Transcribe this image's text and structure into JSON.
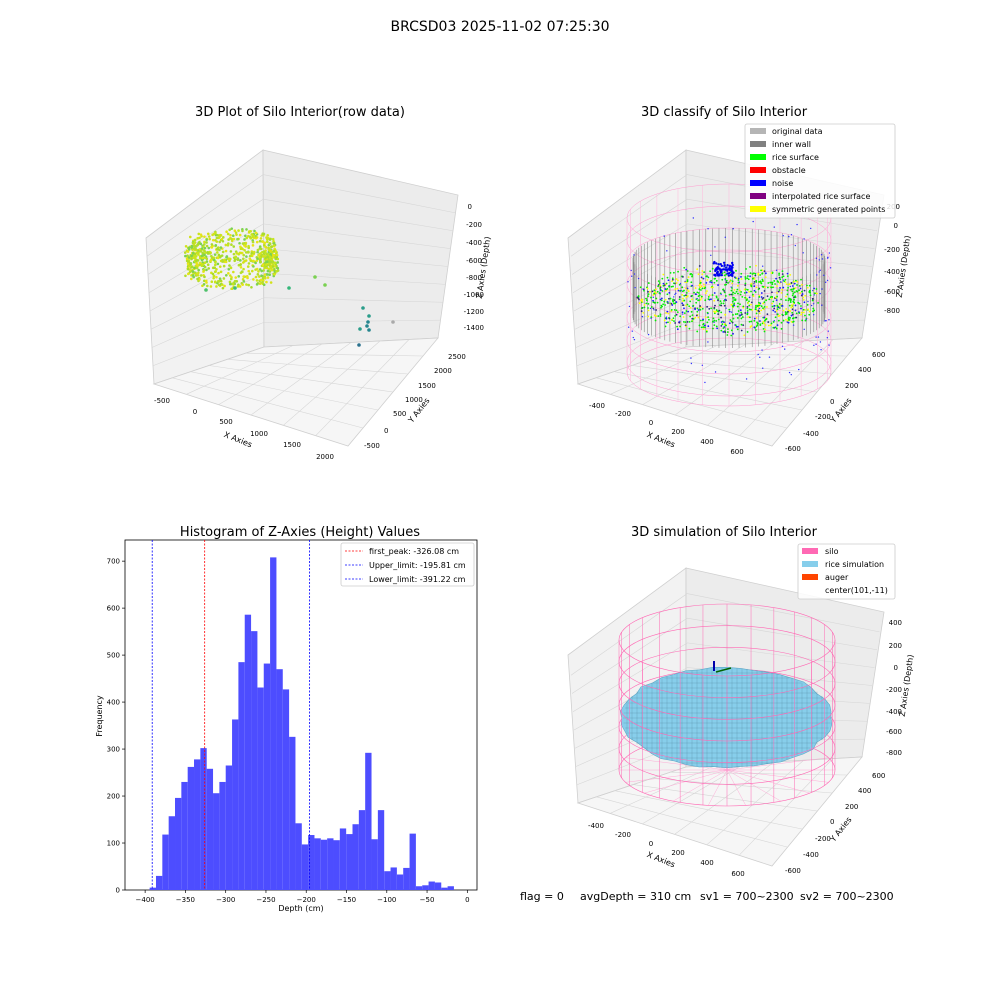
{
  "figure": {
    "suptitle": "BRCSD03 2025-11-02 07:25:30",
    "footer": {
      "flag": "flag = 0",
      "avgDepth": "avgDepth = 310 cm",
      "sv1": "sv1 = 700~2300",
      "sv2": "sv2 = 700~2300"
    }
  },
  "panels": {
    "raw": {
      "title": "3D Plot of Silo Interior(row data)",
      "xlabel": "X Axies",
      "ylabel": "Y Axies",
      "zlabel": "Z Axies (Depth)",
      "xticks": [
        "-500",
        "0",
        "500",
        "1000",
        "1500",
        "2000"
      ],
      "yticks": [
        "-500",
        "0",
        "500",
        "1000",
        "1500",
        "2000",
        "2500"
      ],
      "zticks": [
        "0",
        "-200",
        "-400",
        "-600",
        "-800",
        "-1000",
        "-1200",
        "-1400"
      ]
    },
    "classify": {
      "title": "3D classify of Silo Interior",
      "xticks": [
        "-400",
        "-200",
        "0",
        "200",
        "400",
        "600"
      ],
      "yticks": [
        "-600",
        "-400",
        "-200",
        "0",
        "200",
        "400",
        "600"
      ],
      "zticks": [
        "200",
        "0",
        "-200",
        "-400",
        "-600",
        "-800"
      ],
      "xlabel": "X Axies",
      "ylabel": "Y Axies",
      "zlabel": "Z Axies (Depth)",
      "legend": [
        {
          "label": "original data",
          "color": "#b5b5b5"
        },
        {
          "label": "inner wall",
          "color": "#808080"
        },
        {
          "label": "rice surface",
          "color": "#00ff00"
        },
        {
          "label": "obstacle",
          "color": "#ff0000"
        },
        {
          "label": "noise",
          "color": "#0000ff"
        },
        {
          "label": "interpolated rice surface",
          "color": "#800080"
        },
        {
          "label": "symmetric generated points",
          "color": "#ffff00"
        }
      ]
    },
    "simulation": {
      "title": "3D simulation of Silo Interior",
      "xticks": [
        "-400",
        "-200",
        "0",
        "200",
        "400",
        "600"
      ],
      "yticks": [
        "-600",
        "-400",
        "-200",
        "0",
        "200",
        "400",
        "600"
      ],
      "zticks": [
        "400",
        "200",
        "0",
        "-200",
        "-400",
        "-600",
        "-800"
      ],
      "xlabel": "X Axies",
      "ylabel": "Y Axies",
      "zlabel": "Z Axies (Depth)",
      "legend": [
        {
          "label": "silo",
          "color": "#ff69b4"
        },
        {
          "label": "rice simulation",
          "color": "#87ceeb"
        },
        {
          "label": "auger",
          "color": "#ff4500"
        },
        {
          "label": "center(101,-11)",
          "color": ""
        }
      ]
    }
  },
  "chart_data": [
    {
      "type": "histogram",
      "title": "Histogram of Z-Axies (Height) Values",
      "xlabel": "Depth (cm)",
      "ylabel": "Frequency",
      "xlim": [
        -425,
        12
      ],
      "ylim": [
        0,
        745
      ],
      "xticks": [
        -400,
        -350,
        -300,
        -250,
        -200,
        -150,
        -100,
        -50,
        0
      ],
      "yticks": [
        0,
        100,
        200,
        300,
        400,
        500,
        600,
        700
      ],
      "bar_color": "#4d4dff",
      "bin_width": 7.87,
      "bin_start": -394.4,
      "values": [
        5,
        30,
        118,
        157,
        196,
        230,
        262,
        278,
        302,
        258,
        206,
        230,
        265,
        363,
        485,
        586,
        551,
        431,
        482,
        708,
        470,
        427,
        326,
        142,
        97,
        117,
        110,
        107,
        110,
        106,
        131,
        119,
        140,
        170,
        292,
        108,
        170,
        40,
        48,
        33,
        47,
        120,
        8,
        10,
        18,
        16,
        5,
        8
      ],
      "vlines": [
        {
          "label": "first_peak: -326.08 cm",
          "x": -326.08,
          "color": "#ff0000"
        },
        {
          "label": "Upper_limit: -195.81 cm",
          "x": -195.81,
          "color": "#0000ff"
        },
        {
          "label": "Lower_limit: -391.22 cm",
          "x": -391.22,
          "color": "#0000ff"
        }
      ],
      "legend_position": "upper-right"
    }
  ]
}
